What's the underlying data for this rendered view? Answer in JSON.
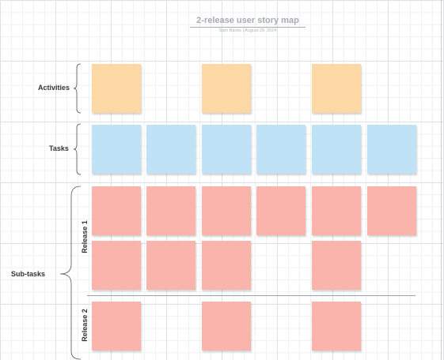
{
  "header": {
    "title": "2-release user story map",
    "author": "Sam Banks",
    "separator": "|",
    "date": "August 28, 2024"
  },
  "labels": {
    "activities": "Activities",
    "tasks": "Tasks",
    "subtasks": "Sub-tasks",
    "release1": "Release 1",
    "release2": "Release 2"
  },
  "colors": {
    "activity": "#fdd8a4",
    "task": "#c0e2f7",
    "subtask": "#fab4ab"
  },
  "grid": {
    "columns": 6,
    "activities": [
      true,
      false,
      true,
      false,
      true,
      false
    ],
    "tasks": [
      true,
      true,
      true,
      true,
      true,
      true
    ],
    "release1_row1": [
      true,
      true,
      true,
      true,
      true,
      true
    ],
    "release1_row2": [
      true,
      true,
      true,
      false,
      true,
      false
    ],
    "release2_row1": [
      true,
      false,
      true,
      false,
      true,
      false
    ]
  }
}
